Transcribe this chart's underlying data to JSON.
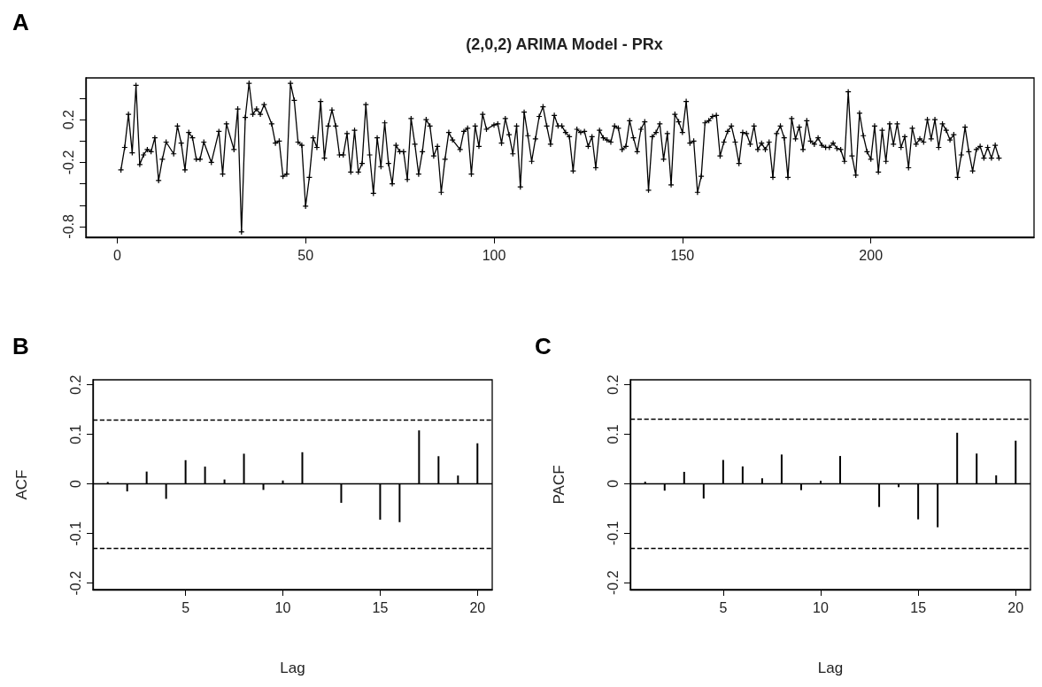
{
  "chart_data": [
    {
      "type": "line",
      "title": "(2,0,2) ARIMA Model - PRx",
      "annotations": [
        "A"
      ],
      "marker": "cross",
      "line_style": "solid",
      "xlim": [
        -8.3,
        243.3
      ],
      "xticks": [
        0,
        50,
        100,
        150,
        200
      ],
      "ylim": [
        -0.9,
        0.59
      ],
      "yticks": [
        {
          "value": -0.8,
          "label": "-0.8"
        },
        {
          "value": -0.6,
          "label": null
        },
        {
          "value": -0.4,
          "label": null
        },
        {
          "value": -0.2,
          "label": "-0.2"
        },
        {
          "value": 0,
          "label": null
        },
        {
          "value": 0.2,
          "label": "0.2"
        },
        {
          "value": 0.4,
          "label": null
        }
      ],
      "series": [
        {
          "color": "#000000",
          "x": [
            1,
            2,
            3,
            4,
            5,
            6,
            7,
            8,
            9,
            10,
            11,
            12,
            13,
            15,
            16,
            17,
            18,
            19,
            20,
            21,
            22,
            23,
            25,
            27,
            28,
            29,
            31,
            32,
            33,
            34,
            35,
            36,
            37,
            38,
            39,
            41,
            42,
            43,
            44,
            45,
            46,
            47,
            48,
            49,
            50,
            51,
            52,
            53,
            54,
            55,
            56,
            57,
            58,
            59,
            60,
            61,
            62,
            63,
            64,
            65,
            66,
            67,
            68,
            69,
            70,
            71,
            72,
            73,
            74,
            75,
            76,
            77,
            78,
            79,
            80,
            81,
            82,
            83,
            84,
            85,
            86,
            87,
            88,
            89,
            91,
            92,
            93,
            94,
            95,
            96,
            97,
            98,
            100,
            101,
            102,
            103,
            104,
            105,
            106,
            107,
            108,
            109,
            110,
            111,
            112,
            113,
            114,
            115,
            116,
            117,
            118,
            119,
            120,
            121,
            122,
            123,
            124,
            125,
            126,
            127,
            128,
            129,
            130,
            131,
            132,
            133,
            134,
            135,
            136,
            137,
            138,
            139,
            140,
            141,
            142,
            143,
            144,
            145,
            146,
            147,
            148,
            149,
            150,
            151,
            152,
            153,
            154,
            155,
            156,
            157,
            158,
            159,
            160,
            161,
            162,
            163,
            164,
            165,
            166,
            167,
            168,
            169,
            170,
            171,
            172,
            173,
            174,
            175,
            176,
            177,
            178,
            179,
            180,
            181,
            182,
            183,
            184,
            185,
            186,
            187,
            188,
            189,
            190,
            191,
            192,
            193,
            194,
            195,
            196,
            197,
            198,
            199,
            200,
            201,
            202,
            203,
            204,
            205,
            206,
            207,
            208,
            209,
            210,
            211,
            212,
            213,
            214,
            215,
            216,
            217,
            218,
            219,
            220,
            221,
            222,
            223,
            224,
            225,
            226,
            227,
            228,
            229,
            230,
            231,
            232,
            233,
            234
          ],
          "values": [
            -0.27,
            -0.06,
            0.25,
            -0.11,
            0.52,
            -0.22,
            -0.13,
            -0.08,
            -0.1,
            0.03,
            -0.37,
            -0.17,
            -0.01,
            -0.12,
            0.14,
            -0.02,
            -0.27,
            0.08,
            0.03,
            -0.17,
            -0.17,
            -0.01,
            -0.2,
            0.09,
            -0.31,
            0.16,
            -0.08,
            0.3,
            -0.85,
            0.22,
            0.54,
            0.25,
            0.3,
            0.25,
            0.34,
            0.16,
            -0.02,
            0.0,
            -0.33,
            -0.31,
            0.54,
            0.38,
            -0.01,
            -0.04,
            -0.61,
            -0.34,
            0.03,
            -0.06,
            0.37,
            -0.16,
            0.14,
            0.29,
            0.14,
            -0.13,
            -0.13,
            0.07,
            -0.29,
            0.1,
            -0.29,
            -0.21,
            0.34,
            -0.13,
            -0.49,
            0.03,
            -0.24,
            0.17,
            -0.21,
            -0.4,
            -0.04,
            -0.1,
            -0.1,
            -0.36,
            0.21,
            -0.03,
            -0.31,
            -0.1,
            0.2,
            0.14,
            -0.14,
            -0.05,
            -0.48,
            -0.17,
            0.08,
            0.01,
            -0.08,
            0.09,
            0.12,
            -0.31,
            0.14,
            -0.05,
            0.25,
            0.11,
            0.15,
            0.16,
            -0.02,
            0.21,
            0.06,
            -0.12,
            0.14,
            -0.43,
            0.27,
            0.05,
            -0.19,
            0.02,
            0.23,
            0.32,
            0.14,
            -0.03,
            0.24,
            0.14,
            0.14,
            0.08,
            0.04,
            -0.28,
            0.11,
            0.08,
            0.09,
            -0.05,
            0.04,
            -0.25,
            0.1,
            0.03,
            0.01,
            -0.01,
            0.14,
            0.12,
            -0.08,
            -0.05,
            0.19,
            0.03,
            -0.1,
            0.11,
            0.18,
            -0.46,
            0.04,
            0.08,
            0.16,
            -0.17,
            0.07,
            -0.41,
            0.25,
            0.18,
            0.08,
            0.37,
            -0.02,
            0.0,
            -0.48,
            -0.33,
            0.17,
            0.19,
            0.23,
            0.24,
            -0.14,
            -0.01,
            0.09,
            0.14,
            -0.01,
            -0.21,
            0.08,
            0.07,
            -0.03,
            0.14,
            -0.08,
            -0.02,
            -0.08,
            -0.01,
            -0.34,
            0.07,
            0.14,
            0.03,
            -0.34,
            0.21,
            0.02,
            0.13,
            -0.08,
            0.19,
            0.0,
            -0.03,
            0.03,
            -0.04,
            -0.06,
            -0.06,
            -0.02,
            -0.07,
            -0.08,
            -0.19,
            0.46,
            -0.14,
            -0.32,
            0.26,
            0.05,
            -0.1,
            -0.17,
            0.14,
            -0.29,
            0.1,
            -0.19,
            0.16,
            -0.03,
            0.16,
            -0.06,
            0.04,
            -0.25,
            0.12,
            -0.03,
            0.02,
            -0.01,
            0.2,
            0.02,
            0.2,
            -0.06,
            0.16,
            0.1,
            0.01,
            0.06,
            -0.34,
            -0.13,
            0.13,
            -0.1,
            -0.28,
            -0.08,
            -0.05,
            -0.16,
            -0.06,
            -0.16,
            -0.04,
            -0.16
          ]
        }
      ]
    },
    {
      "type": "bar",
      "annotations": [
        "B"
      ],
      "xlabel": "Lag",
      "ylabel": "ACF",
      "x": [
        1,
        2,
        3,
        4,
        5,
        6,
        7,
        8,
        9,
        10,
        11,
        12,
        13,
        14,
        15,
        16,
        17,
        18,
        19,
        20
      ],
      "values": [
        0.004,
        -0.015,
        0.025,
        -0.03,
        0.048,
        0.035,
        0.009,
        0.061,
        -0.012,
        0.007,
        0.064,
        0,
        -0.038,
        0,
        -0.072,
        -0.077,
        0.108,
        0.056,
        0.017,
        0.082
      ],
      "color": "#000000",
      "xlim": [
        0.24,
        20.76
      ],
      "xticks": [
        5,
        10,
        15,
        20
      ],
      "ylim": [
        -0.213,
        0.21
      ],
      "yticks": [
        -0.2,
        -0.1,
        0.0,
        0.1,
        0.2
      ],
      "ref_lines": [
        {
          "axis": "y",
          "value": 0.128,
          "line_style": "dashed",
          "color": "#000000"
        },
        {
          "axis": "y",
          "value": -0.128,
          "line_style": "dashed",
          "color": "#000000"
        },
        {
          "axis": "y",
          "value": 0,
          "line_style": "solid",
          "color": "#000000"
        }
      ]
    },
    {
      "type": "bar",
      "annotations": [
        "C"
      ],
      "xlabel": "Lag",
      "ylabel": "PACF",
      "x": [
        1,
        2,
        3,
        4,
        5,
        6,
        7,
        8,
        9,
        10,
        11,
        12,
        13,
        14,
        15,
        16,
        17,
        18,
        19,
        20
      ],
      "values": [
        0.004,
        -0.014,
        0.024,
        -0.03,
        0.048,
        0.035,
        0.011,
        0.059,
        -0.013,
        0.006,
        0.056,
        0,
        -0.047,
        -0.007,
        -0.072,
        -0.088,
        0.103,
        0.061,
        0.017,
        0.087
      ],
      "color": "#000000",
      "xlim": [
        0.24,
        20.76
      ],
      "xticks": [
        5,
        10,
        15,
        20
      ],
      "ylim": [
        -0.214,
        0.21
      ],
      "yticks": [
        -0.2,
        -0.1,
        0.0,
        0.1,
        0.2
      ],
      "ref_lines": [
        {
          "axis": "y",
          "value": 0.128,
          "line_style": "dashed",
          "color": "#000000"
        },
        {
          "axis": "y",
          "value": -0.128,
          "line_style": "dashed",
          "color": "#000000"
        },
        {
          "axis": "y",
          "value": 0,
          "line_style": "solid",
          "color": "#000000"
        }
      ]
    }
  ]
}
